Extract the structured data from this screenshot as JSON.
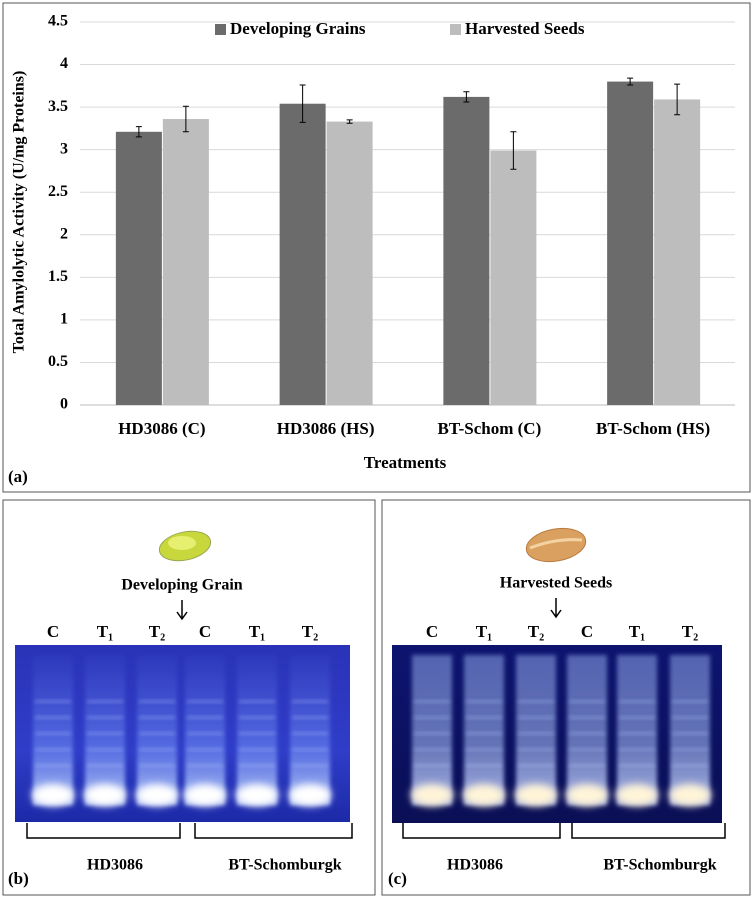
{
  "chart_data": {
    "type": "bar",
    "panel_label": "(a)",
    "ylabel": "Total Amylolytic Activity (U/mg Proteins)",
    "xlabel": "Treatments",
    "categories": [
      "HD3086 (C)",
      "HD3086 (HS)",
      "BT-Schom (C)",
      "BT-Schom (HS)"
    ],
    "series": [
      {
        "name": "Developing Grains",
        "color": "#6b6b6b",
        "values": [
          3.21,
          3.54,
          3.62,
          3.8
        ],
        "errors": [
          0.06,
          0.22,
          0.06,
          0.04
        ]
      },
      {
        "name": "Harvested Seeds",
        "color": "#bdbdbd",
        "values": [
          3.36,
          3.33,
          2.99,
          3.59
        ],
        "errors": [
          0.15,
          0.02,
          0.22,
          0.18
        ]
      }
    ],
    "ylim": [
      0,
      4.5
    ],
    "yticks": [
      0,
      0.5,
      1,
      1.5,
      2,
      2.5,
      3,
      3.5,
      4,
      4.5
    ],
    "grid": true,
    "legend": "top"
  },
  "gels": [
    {
      "label": "(b)",
      "sample": "Developing Grain",
      "lanes": [
        "C",
        "T₁",
        "T₂",
        "C",
        "T₁",
        "T₂"
      ],
      "groups": [
        "HD3086",
        "BT-Schomburgk"
      ]
    },
    {
      "label": "(c)",
      "sample": "Harvested Seeds",
      "lanes": [
        "C",
        "T₁",
        "T₂",
        "C",
        "T₁",
        "T₂"
      ],
      "groups": [
        "HD3086",
        "BT-Schomburgk"
      ]
    }
  ]
}
